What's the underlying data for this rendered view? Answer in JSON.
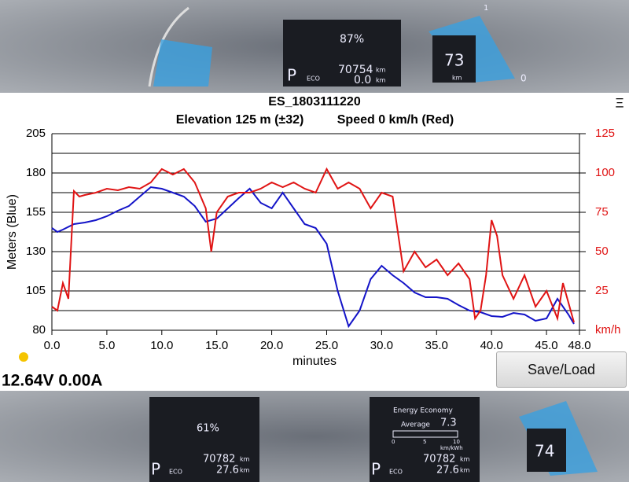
{
  "dashboard_top": {
    "battery": "87%",
    "odometer": "70754",
    "trip": "0.0",
    "range": "73",
    "unit": "km",
    "gear": "P",
    "mode": "ECO",
    "gauge_max": "1",
    "gauge_min": "0"
  },
  "dashboard_bottom": {
    "battery": "61%",
    "odometer": "70782",
    "trip": "27.6",
    "range": "74",
    "unit": "km",
    "gear": "P",
    "mode": "ECO",
    "economy_title": "Energy Economy",
    "average_label": "Average",
    "average": "7.3",
    "scale": [
      "0",
      "5",
      "10"
    ],
    "scale_unit": "km/kWh"
  },
  "menu_icon": "Ξ",
  "status": "12.64V 0.00A",
  "button": "Save/Load",
  "chart_data": {
    "type": "line",
    "title": "ES_1803111220",
    "subtitle_left": "Elevation 125 m (±32)",
    "subtitle_right": "Speed 0 km/h (Red)",
    "x_label": "minutes",
    "y_label": "Meters   (Blue)",
    "xlim": [
      0,
      48
    ],
    "xticks": [
      {
        "value": 0,
        "label": "0.0"
      },
      {
        "value": 5,
        "label": "5.0"
      },
      {
        "value": 10,
        "label": "10.0"
      },
      {
        "value": 15,
        "label": "15.0"
      },
      {
        "value": 20,
        "label": "20.0"
      },
      {
        "value": 25,
        "label": "25.0"
      },
      {
        "value": 30,
        "label": "30.0"
      },
      {
        "value": 35,
        "label": "35.0"
      },
      {
        "value": 40,
        "label": "40.0"
      },
      {
        "value": 45,
        "label": "45.0"
      },
      {
        "value": 48,
        "label": "48.0"
      }
    ],
    "ylim": [
      80,
      205
    ],
    "yticks": [
      80,
      105,
      130,
      155,
      180,
      205
    ],
    "y_minor_ticks": [
      92.5,
      117.5,
      142.5,
      167.5,
      192.5
    ],
    "y2lim": [
      0,
      125
    ],
    "y2ticks": [
      {
        "value": 0,
        "label": "km/h"
      },
      25,
      50,
      75,
      100,
      125
    ],
    "grid": true,
    "series": [
      {
        "name": "Meters",
        "color": "#1414c8",
        "axis": "y",
        "x": [
          0,
          0.5,
          1,
          2,
          3,
          4,
          5,
          6,
          7,
          8,
          9,
          10,
          11,
          12,
          13,
          14,
          15,
          16,
          17,
          18,
          19,
          20,
          21,
          22,
          23,
          24,
          25,
          26,
          27,
          28,
          29,
          30,
          31,
          32,
          33,
          34,
          35,
          36,
          37,
          38,
          39,
          40,
          41,
          42,
          43,
          44,
          45,
          46,
          47,
          47.5
        ],
        "values": [
          145,
          142.5,
          144,
          147.5,
          148.5,
          150,
          152.5,
          156,
          159,
          165,
          171,
          170,
          167.5,
          165,
          159,
          149,
          151,
          157.5,
          164,
          170,
          161,
          157.5,
          167.5,
          157.5,
          147.5,
          145,
          135,
          105,
          82.5,
          92.5,
          112.5,
          121,
          115,
          110,
          104,
          101,
          101,
          100,
          96,
          92.5,
          91.5,
          89,
          88.5,
          91,
          90,
          86,
          87.5,
          100,
          90,
          84
        ]
      },
      {
        "name": "Speed",
        "color": "#e01414",
        "axis": "y2",
        "x": [
          0,
          0.5,
          1,
          1.5,
          2,
          2.5,
          3,
          4,
          5,
          6,
          7,
          8,
          9,
          10,
          11,
          12,
          13,
          14,
          14.5,
          15,
          16,
          17,
          18,
          19,
          20,
          21,
          22,
          23,
          24,
          25,
          26,
          27,
          28,
          29,
          30,
          31,
          32,
          33,
          34,
          35,
          36,
          37,
          38,
          38.5,
          39,
          39.5,
          40,
          40.5,
          41,
          42,
          43,
          44,
          45,
          46,
          46.5,
          47,
          47.5
        ],
        "values": [
          15,
          12.5,
          30,
          20,
          88.5,
          85,
          86,
          87.5,
          90,
          89,
          91,
          90,
          94,
          102.5,
          99,
          102.5,
          94,
          77.5,
          50,
          75,
          85,
          87.5,
          87.5,
          90,
          94,
          91,
          94,
          90,
          87.5,
          102.5,
          90,
          94,
          90,
          77.5,
          87.5,
          85,
          37.5,
          50,
          40,
          45,
          35,
          42.5,
          32.5,
          7.5,
          12.5,
          35,
          70,
          60,
          35,
          20,
          35,
          15,
          25,
          7.5,
          30,
          17.5,
          5
        ]
      }
    ]
  }
}
